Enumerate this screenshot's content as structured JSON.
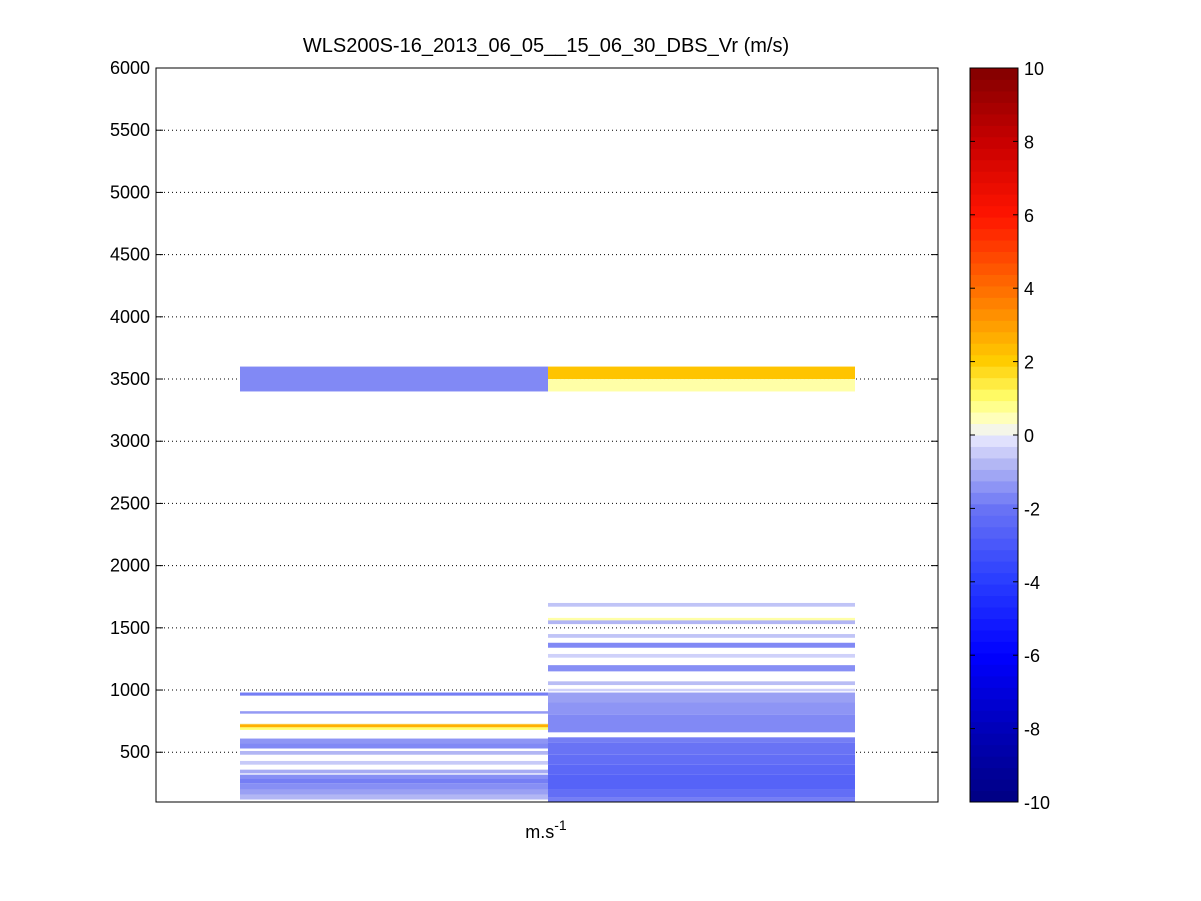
{
  "chart_data": {
    "type": "heatmap",
    "title": "WLS200S-16_2013_06_05__15_06_30_DBS_Vr (m/s)",
    "xlabel_base": "m.s",
    "xlabel_exp": "-1",
    "ylabel": "",
    "grid": "horizontal dotted",
    "ylim": [
      100,
      6000
    ],
    "y_ticks": [
      500,
      1000,
      1500,
      2000,
      2500,
      3000,
      3500,
      4000,
      4500,
      5000,
      5500,
      6000
    ],
    "y_tick_labels": [
      "500",
      "1000",
      "1500",
      "2000",
      "2500",
      "3000",
      "3500",
      "4000",
      "4500",
      "5000",
      "5500",
      "6000"
    ],
    "colorbar": {
      "range": [
        -10,
        10
      ],
      "ticks": [
        -10,
        -8,
        -6,
        -4,
        -2,
        0,
        2,
        4,
        6,
        8,
        10
      ],
      "tick_labels": [
        "-10",
        "-8",
        "-6",
        "-4",
        "-2",
        "0",
        "2",
        "4",
        "6",
        "8",
        "10"
      ],
      "colormap": "blue-white-red (jet-like diverging)"
    },
    "columns": [
      {
        "bins": [
          {
            "from": 3400,
            "to": 3600,
            "value": -1.6
          },
          {
            "from": 955,
            "to": 980,
            "value": -1.8
          },
          {
            "from": 810,
            "to": 830,
            "value": -1.3
          },
          {
            "from": 725,
            "to": 735,
            "value": 0.2
          },
          {
            "from": 700,
            "to": 725,
            "value": 2.6
          },
          {
            "from": 680,
            "to": 700,
            "value": 1.0
          },
          {
            "from": 570,
            "to": 610,
            "value": -1.4
          },
          {
            "from": 530,
            "to": 570,
            "value": -1.6
          },
          {
            "from": 480,
            "to": 510,
            "value": -0.8
          },
          {
            "from": 400,
            "to": 430,
            "value": -0.5
          },
          {
            "from": 330,
            "to": 360,
            "value": -1.0
          },
          {
            "from": 290,
            "to": 320,
            "value": -1.5
          },
          {
            "from": 250,
            "to": 290,
            "value": -1.8
          },
          {
            "from": 200,
            "to": 250,
            "value": -1.5
          },
          {
            "from": 160,
            "to": 200,
            "value": -1.2
          },
          {
            "from": 120,
            "to": 160,
            "value": -0.8
          }
        ]
      },
      {
        "bins": [
          {
            "from": 3500,
            "to": 3600,
            "value": 2.2
          },
          {
            "from": 3400,
            "to": 3500,
            "value": 0.6
          },
          {
            "from": 1670,
            "to": 1700,
            "value": -0.6
          },
          {
            "from": 1560,
            "to": 1580,
            "value": 0.6
          },
          {
            "from": 1530,
            "to": 1560,
            "value": -0.8
          },
          {
            "from": 1420,
            "to": 1450,
            "value": -0.6
          },
          {
            "from": 1340,
            "to": 1380,
            "value": -1.6
          },
          {
            "from": 1260,
            "to": 1290,
            "value": -0.4
          },
          {
            "from": 1150,
            "to": 1200,
            "value": -1.5
          },
          {
            "from": 1040,
            "to": 1070,
            "value": -0.7
          },
          {
            "from": 990,
            "to": 1010,
            "value": -0.4
          },
          {
            "from": 900,
            "to": 980,
            "value": -1.2
          },
          {
            "from": 800,
            "to": 900,
            "value": -1.4
          },
          {
            "from": 660,
            "to": 800,
            "value": -1.6
          },
          {
            "from": 580,
            "to": 620,
            "value": -1.8
          },
          {
            "from": 480,
            "to": 580,
            "value": -2.0
          },
          {
            "from": 400,
            "to": 480,
            "value": -2.2
          },
          {
            "from": 320,
            "to": 400,
            "value": -2.4
          },
          {
            "from": 200,
            "to": 320,
            "value": -2.6
          },
          {
            "from": 140,
            "to": 200,
            "value": -2.2
          },
          {
            "from": 100,
            "to": 140,
            "value": -1.8
          }
        ]
      }
    ]
  }
}
